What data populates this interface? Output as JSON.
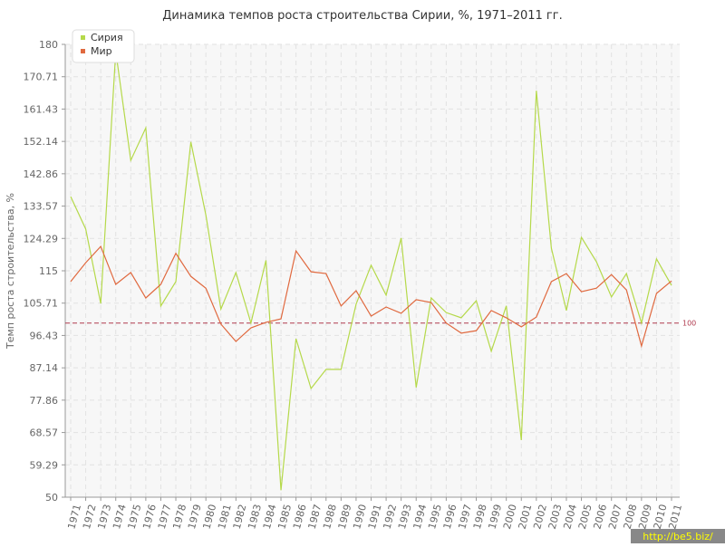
{
  "chart_data": {
    "type": "line",
    "title": "Динамика темпов роста строительства Сирии, %, 1971–2011 гг.",
    "y_label": "Темп роста строительства, %",
    "categories": [
      "1971",
      "1972",
      "1973",
      "1974",
      "1975",
      "1976",
      "1977",
      "1978",
      "1979",
      "1980",
      "1981",
      "1982",
      "1983",
      "1984",
      "1985",
      "1986",
      "1987",
      "1988",
      "1989",
      "1990",
      "1991",
      "1992",
      "1993",
      "1994",
      "1995",
      "1996",
      "1997",
      "1998",
      "1999",
      "2000",
      "2001",
      "2002",
      "2003",
      "2004",
      "2005",
      "2006",
      "2007",
      "2008",
      "2009",
      "2010",
      "2011"
    ],
    "series": [
      {
        "name": "Сирия",
        "color": "#b5d94a",
        "values": [
          136.3,
          127,
          105.6,
          178,
          146.7,
          156,
          104.9,
          111.9,
          152,
          131,
          104,
          114.5,
          100,
          118,
          52,
          95.5,
          81.2,
          86.7,
          86.7,
          105.4,
          116.6,
          108,
          124.4,
          81.5,
          107.2,
          103,
          101.5,
          106.4,
          91.9,
          104.9,
          66.4,
          166.7,
          121.5,
          103.6,
          124.6,
          117.6,
          107.5,
          114.2,
          100,
          118.4,
          110.8
        ]
      },
      {
        "name": "Мир",
        "color": "#e0693f",
        "values": [
          111.9,
          117.3,
          122,
          111.1,
          114.5,
          107.2,
          111.1,
          120,
          113.4,
          110,
          99.7,
          94.7,
          98.6,
          100.2,
          101.2,
          120.7,
          114.7,
          114.2,
          104.9,
          109.3,
          102,
          104.6,
          102.8,
          106.7,
          105.9,
          100,
          97.1,
          97.8,
          103.6,
          101.5,
          98.9,
          101.7,
          111.9,
          114.2,
          109,
          110,
          113.9,
          109.5,
          93.4,
          108.5,
          112.1
        ]
      }
    ],
    "ylim": [
      50,
      180
    ],
    "yticks": [
      50,
      59.29,
      68.57,
      77.86,
      87.14,
      96.43,
      105.71,
      115,
      124.29,
      133.57,
      142.86,
      152.14,
      161.43,
      170.71,
      180
    ],
    "grid": true,
    "reference_line": {
      "value": 100,
      "color": "#b03a4e"
    },
    "legend": "top-left",
    "watermark": "http://be5.biz/"
  }
}
